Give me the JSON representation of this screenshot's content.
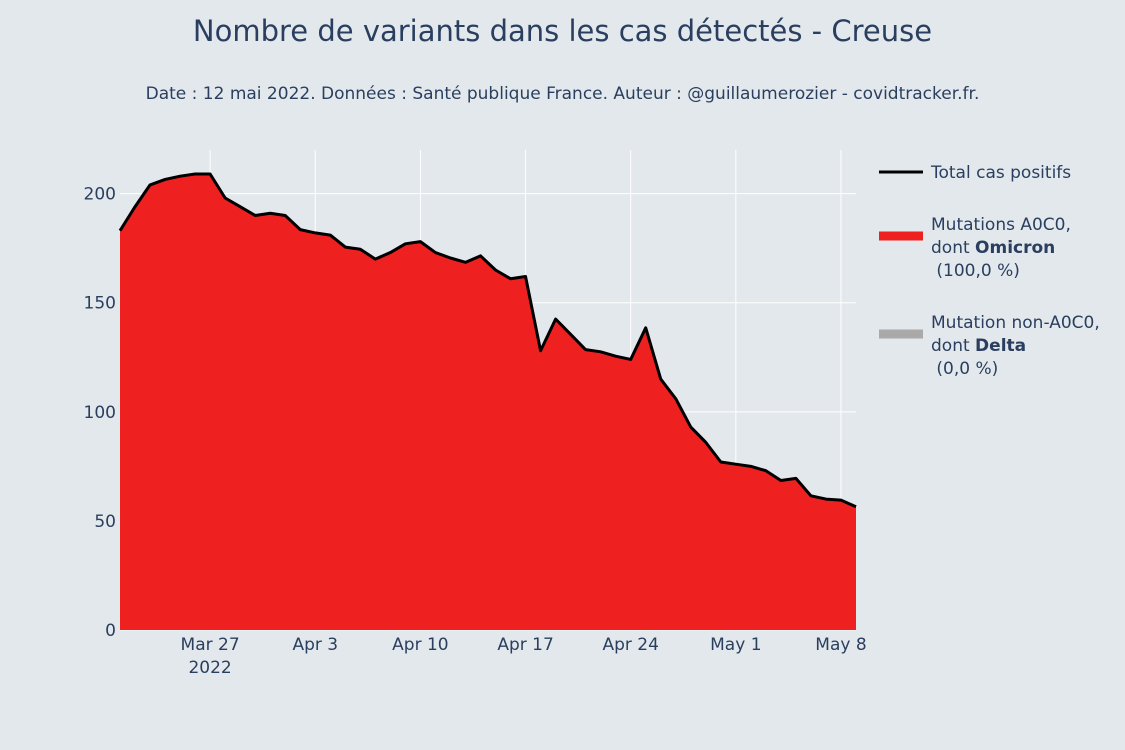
{
  "chart_data": {
    "type": "area",
    "title": "Nombre de variants dans les cas détectés - Creuse",
    "subtitle": "Date : 12 mai 2022. Données : Santé publique France. Auteur : @guillaumerozier - covidtracker.fr.",
    "xlabel": "",
    "ylabel": "",
    "x_start": "2022-03-21",
    "x_end": "2022-05-09",
    "xlim": [
      "2022-03-21",
      "2022-05-09"
    ],
    "ylim": [
      0,
      220
    ],
    "x_ticks": [
      {
        "date": "2022-03-27",
        "label": "Mar 27",
        "sublabel": "2022"
      },
      {
        "date": "2022-04-03",
        "label": "Apr 3",
        "sublabel": ""
      },
      {
        "date": "2022-04-10",
        "label": "Apr 10",
        "sublabel": ""
      },
      {
        "date": "2022-04-17",
        "label": "Apr 17",
        "sublabel": ""
      },
      {
        "date": "2022-04-24",
        "label": "Apr 24",
        "sublabel": ""
      },
      {
        "date": "2022-05-01",
        "label": "May 1",
        "sublabel": ""
      },
      {
        "date": "2022-05-08",
        "label": "May 8",
        "sublabel": ""
      }
    ],
    "y_ticks": [
      0,
      50,
      100,
      150,
      200
    ],
    "grid": true,
    "legend_position": "right",
    "series": [
      {
        "name": "Total cas positifs",
        "kind": "line",
        "color": "#000000",
        "values": [
          183,
          194,
          204,
          206.5,
          208,
          209,
          209,
          198,
          194,
          190,
          191,
          190,
          183.5,
          182,
          181,
          175.5,
          174.5,
          170,
          173,
          177,
          178,
          173,
          170.5,
          168.5,
          171.5,
          165,
          161,
          162,
          128,
          142.5,
          135.5,
          128.5,
          127.5,
          125.5,
          124,
          138.5,
          115,
          106,
          93,
          86,
          77,
          76,
          75,
          73,
          68.5,
          69.5,
          61.5,
          60,
          59.5,
          56.5
        ]
      },
      {
        "name_lines": [
          "Mutations A0C0,",
          "dont ",
          "Omicron",
          " (100,0 %)"
        ],
        "kind": "area",
        "color": "#ef2020",
        "values": [
          183,
          194,
          204,
          206.5,
          208,
          209,
          209,
          198,
          194,
          190,
          191,
          190,
          183.5,
          182,
          181,
          175.5,
          174.5,
          170,
          173,
          177,
          178,
          173,
          170.5,
          168.5,
          171.5,
          165,
          161,
          162,
          128,
          142.5,
          135.5,
          128.5,
          127.5,
          125.5,
          124,
          138.5,
          115,
          106,
          93,
          86,
          77,
          76,
          75,
          73,
          68.5,
          69.5,
          61.5,
          60,
          59.5,
          56.5
        ]
      },
      {
        "name_lines": [
          "Mutation non-A0C0,",
          "dont ",
          "Delta",
          " (0,0 %)"
        ],
        "kind": "area",
        "color": "#a9a9a9",
        "values": [
          0,
          0,
          0,
          0,
          0,
          0,
          0,
          0,
          0,
          0,
          0,
          0,
          0,
          0,
          0,
          0,
          0,
          0,
          0,
          0,
          0,
          0,
          0,
          0,
          0,
          0,
          0,
          0,
          0,
          0,
          0,
          0,
          0,
          0,
          0,
          0,
          0,
          0,
          0,
          0,
          0,
          0,
          0,
          0,
          0,
          0,
          0,
          0,
          0,
          0
        ]
      }
    ]
  }
}
